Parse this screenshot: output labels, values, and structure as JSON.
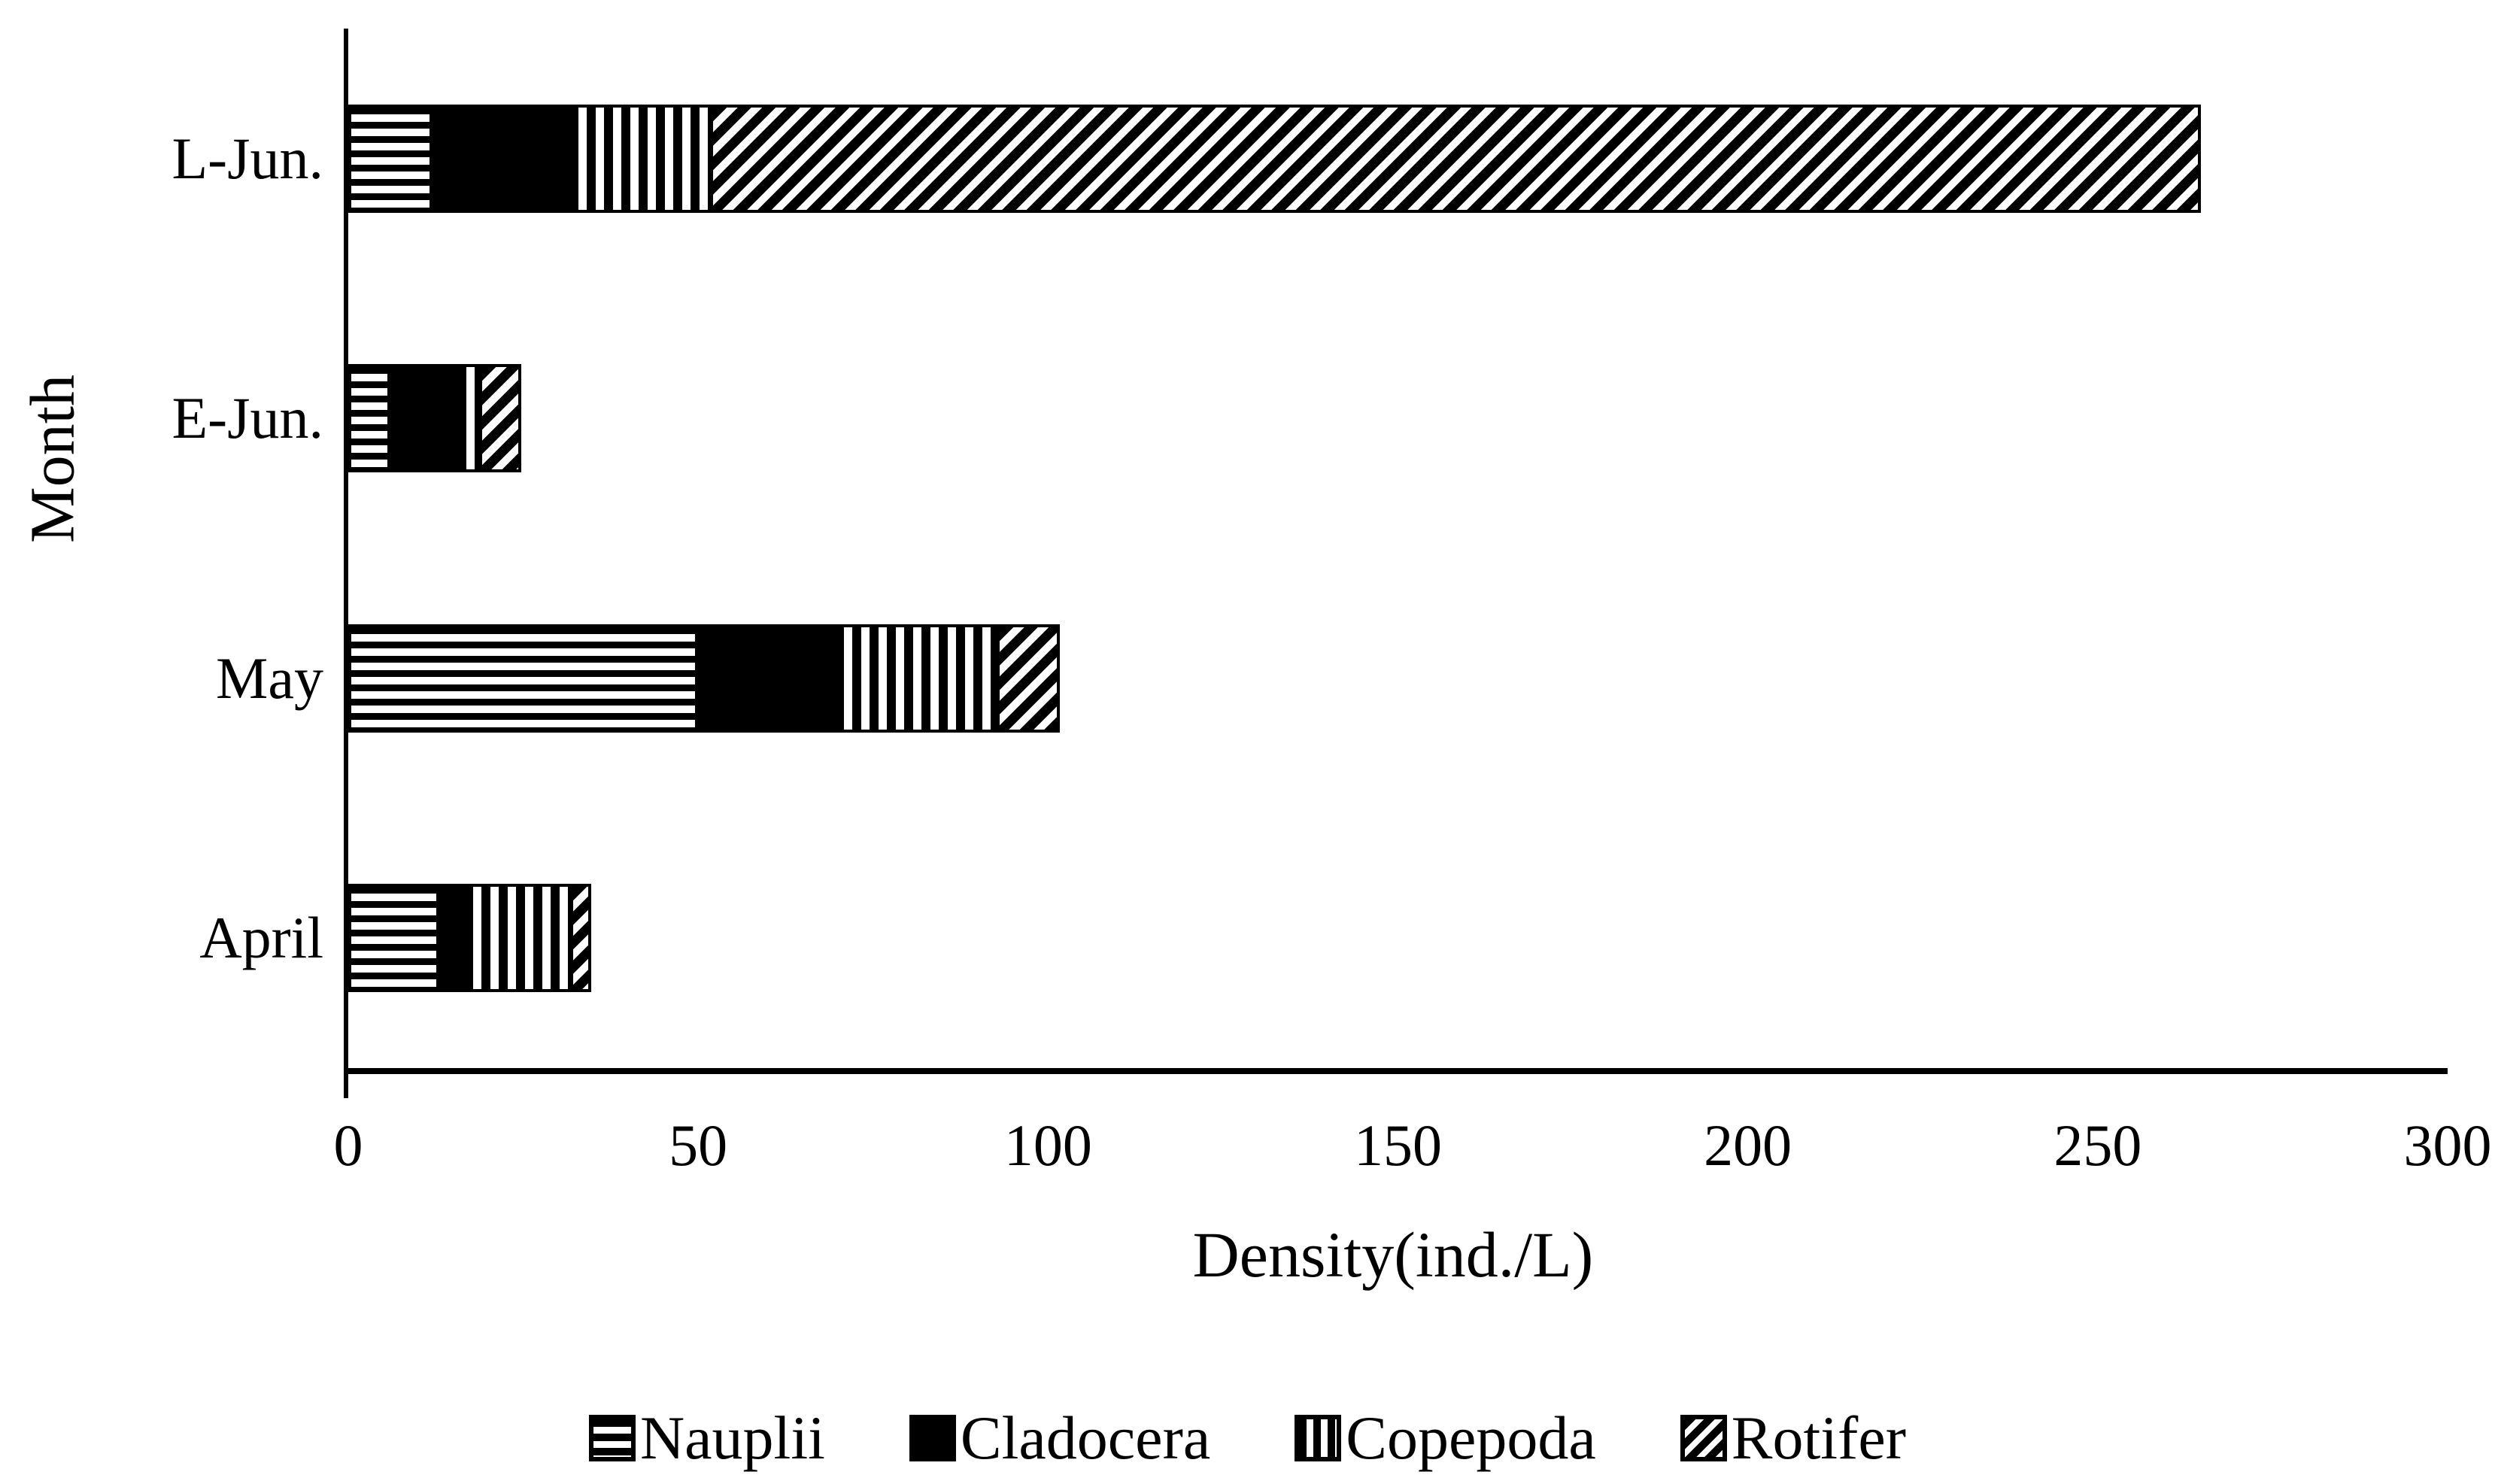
{
  "figure": {
    "background": "#ffffff",
    "ink_color": "#000000"
  },
  "chart_data": {
    "type": "bar",
    "orientation": "horizontal",
    "stacked": true,
    "title": "",
    "xlabel": "Density(ind./L)",
    "ylabel": "Month",
    "xlim": [
      0,
      300
    ],
    "xticks": [
      "0",
      "50",
      "100",
      "150",
      "200",
      "250",
      "300"
    ],
    "xtick_values": [
      0,
      50,
      100,
      150,
      200,
      250,
      300
    ],
    "grid": false,
    "categories_top_to_bottom": [
      "L-Jun.",
      "E-Jun.",
      "May",
      "April"
    ],
    "series": [
      {
        "name": "Nauplii",
        "pattern": "horizontal-stripes",
        "values": [
          12,
          6,
          50,
          13
        ]
      },
      {
        "name": "Cladocera",
        "pattern": "solid",
        "values": [
          20,
          10,
          20,
          4
        ]
      },
      {
        "name": "Copepoda",
        "pattern": "vertical-stripes",
        "values": [
          21,
          4,
          24,
          16
        ]
      },
      {
        "name": "Rotifer",
        "pattern": "diagonal-stripes",
        "values": [
          213,
          6,
          9,
          3
        ]
      }
    ],
    "stack_totals": [
      266,
      26,
      103,
      36
    ],
    "legend": {
      "position": "bottom",
      "entries": [
        "Nauplii",
        "Cladocera",
        "Copepoda",
        "Rotifer"
      ]
    }
  }
}
